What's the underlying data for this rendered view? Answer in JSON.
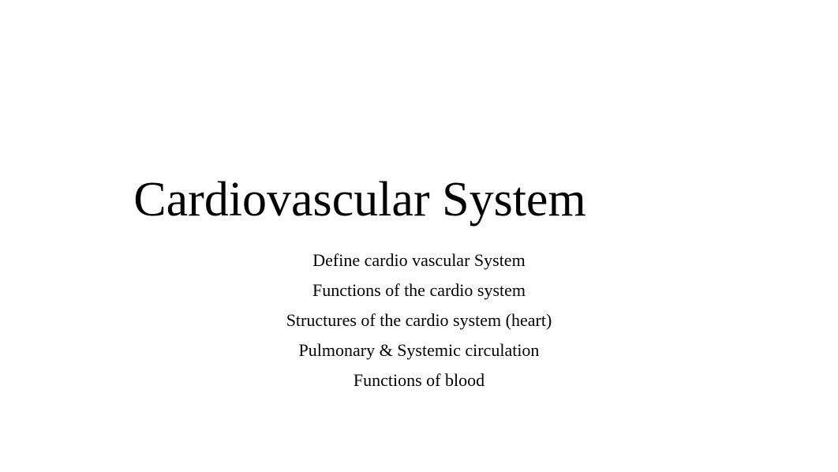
{
  "slide": {
    "title": "Cardiovascular System",
    "subtitles": [
      "Define cardio vascular System",
      "Functions of the cardio system",
      "Structures of the cardio system (heart)",
      "Pulmonary & Systemic circulation",
      "Functions of blood"
    ],
    "background_color": "#ffffff",
    "text_color": "#000000",
    "title_fontsize": 62,
    "subtitle_fontsize": 22,
    "font_family": "Georgia, 'Times New Roman', Times, serif"
  }
}
